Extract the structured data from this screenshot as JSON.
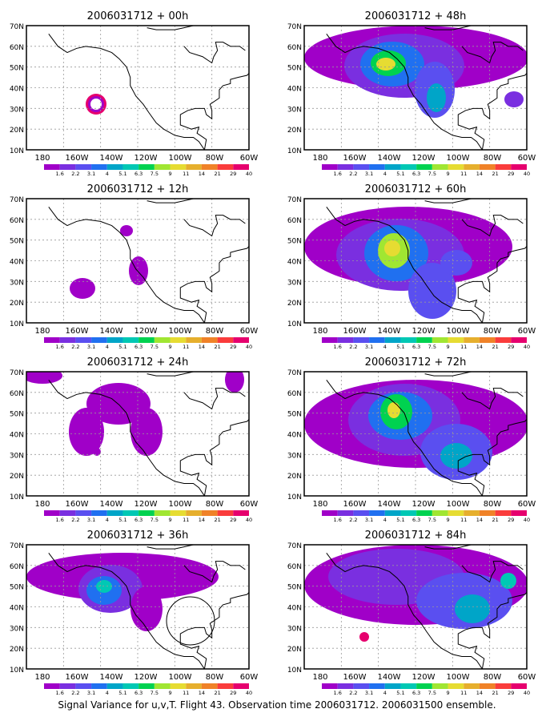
{
  "panels": [
    {
      "title": "2006031712 + 00h"
    },
    {
      "title": "2006031712 + 48h"
    },
    {
      "title": "2006031712 + 12h"
    },
    {
      "title": "2006031712 + 60h"
    },
    {
      "title": "2006031712 + 24h"
    },
    {
      "title": "2006031712 + 72h"
    },
    {
      "title": "2006031712 + 36h"
    },
    {
      "title": "2006031712 + 84h"
    }
  ],
  "axes": {
    "lat_labels": [
      "10N",
      "20N",
      "30N",
      "40N",
      "50N",
      "60N",
      "70N"
    ],
    "lon_labels": [
      "180",
      "160W",
      "140W",
      "120W",
      "100W",
      "80W",
      "60W"
    ]
  },
  "colorbar": {
    "labels": [
      "1.6",
      "2.2",
      "3.1",
      "4",
      "5.1",
      "6.3",
      "7.5",
      "9",
      "11",
      "14",
      "21",
      "29",
      "40"
    ],
    "colors": [
      "#a000c8",
      "#7a2fe0",
      "#5a4ff0",
      "#2070f0",
      "#00a5c8",
      "#00c8b4",
      "#00d250",
      "#a0e632",
      "#e6dc32",
      "#e6af2d",
      "#f08228",
      "#fa3c3c",
      "#e6006e"
    ]
  },
  "footer": {
    "caption": "Signal Variance for u,v,T. Flight 43. Observation time 2006031712. 2006031500 ensemble."
  }
}
